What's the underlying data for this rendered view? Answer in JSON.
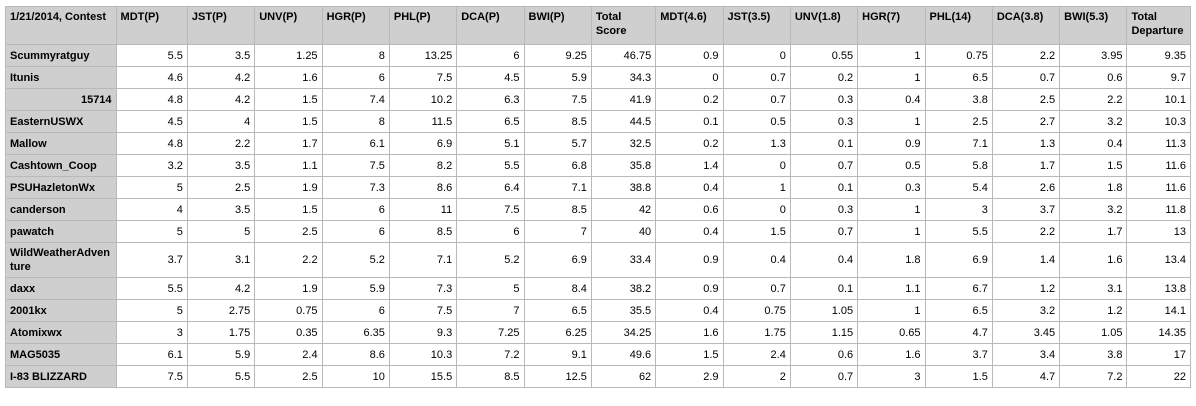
{
  "columns": [
    "1/21/2014, Contest",
    "MDT(P)",
    "JST(P)",
    "UNV(P)",
    "HGR(P)",
    "PHL(P)",
    "DCA(P)",
    "BWI(P)",
    "Total Score",
    "MDT(4.6)",
    "JST(3.5)",
    "UNV(1.8)",
    "HGR(7)",
    "PHL(14)",
    "DCA(3.8)",
    "BWI(5.3)",
    "Total Departure"
  ],
  "rows": [
    [
      "Scummyratguy",
      "5.5",
      "3.5",
      "1.25",
      "8",
      "13.25",
      "6",
      "9.25",
      "46.75",
      "0.9",
      "0",
      "0.55",
      "1",
      "0.75",
      "2.2",
      "3.95",
      "9.35"
    ],
    [
      "Itunis",
      "4.6",
      "4.2",
      "1.6",
      "6",
      "7.5",
      "4.5",
      "5.9",
      "34.3",
      "0",
      "0.7",
      "0.2",
      "1",
      "6.5",
      "0.7",
      "0.6",
      "9.7"
    ],
    [
      "15714",
      "4.8",
      "4.2",
      "1.5",
      "7.4",
      "10.2",
      "6.3",
      "7.5",
      "41.9",
      "0.2",
      "0.7",
      "0.3",
      "0.4",
      "3.8",
      "2.5",
      "2.2",
      "10.1"
    ],
    [
      "EasternUSWX",
      "4.5",
      "4",
      "1.5",
      "8",
      "11.5",
      "6.5",
      "8.5",
      "44.5",
      "0.1",
      "0.5",
      "0.3",
      "1",
      "2.5",
      "2.7",
      "3.2",
      "10.3"
    ],
    [
      "Mallow",
      "4.8",
      "2.2",
      "1.7",
      "6.1",
      "6.9",
      "5.1",
      "5.7",
      "32.5",
      "0.2",
      "1.3",
      "0.1",
      "0.9",
      "7.1",
      "1.3",
      "0.4",
      "11.3"
    ],
    [
      "Cashtown_Coop",
      "3.2",
      "3.5",
      "1.1",
      "7.5",
      "8.2",
      "5.5",
      "6.8",
      "35.8",
      "1.4",
      "0",
      "0.7",
      "0.5",
      "5.8",
      "1.7",
      "1.5",
      "11.6"
    ],
    [
      "PSUHazletonWx",
      "5",
      "2.5",
      "1.9",
      "7.3",
      "8.6",
      "6.4",
      "7.1",
      "38.8",
      "0.4",
      "1",
      "0.1",
      "0.3",
      "5.4",
      "2.6",
      "1.8",
      "11.6"
    ],
    [
      "canderson",
      "4",
      "3.5",
      "1.5",
      "6",
      "11",
      "7.5",
      "8.5",
      "42",
      "0.6",
      "0",
      "0.3",
      "1",
      "3",
      "3.7",
      "3.2",
      "11.8"
    ],
    [
      "pawatch",
      "5",
      "5",
      "2.5",
      "6",
      "8.5",
      "6",
      "7",
      "40",
      "0.4",
      "1.5",
      "0.7",
      "1",
      "5.5",
      "2.2",
      "1.7",
      "13"
    ],
    [
      "WildWeatherAdventure",
      "3.7",
      "3.1",
      "2.2",
      "5.2",
      "7.1",
      "5.2",
      "6.9",
      "33.4",
      "0.9",
      "0.4",
      "0.4",
      "1.8",
      "6.9",
      "1.4",
      "1.6",
      "13.4"
    ],
    [
      "daxx",
      "5.5",
      "4.2",
      "1.9",
      "5.9",
      "7.3",
      "5",
      "8.4",
      "38.2",
      "0.9",
      "0.7",
      "0.1",
      "1.1",
      "6.7",
      "1.2",
      "3.1",
      "13.8"
    ],
    [
      "2001kx",
      "5",
      "2.75",
      "0.75",
      "6",
      "7.5",
      "7",
      "6.5",
      "35.5",
      "0.4",
      "0.75",
      "1.05",
      "1",
      "6.5",
      "3.2",
      "1.2",
      "14.1"
    ],
    [
      "Atomixwx",
      "3",
      "1.75",
      "0.35",
      "6.35",
      "9.3",
      "7.25",
      "6.25",
      "34.25",
      "1.6",
      "1.75",
      "1.15",
      "0.65",
      "4.7",
      "3.45",
      "1.05",
      "14.35"
    ],
    [
      "MAG5035",
      "6.1",
      "5.9",
      "2.4",
      "8.6",
      "10.3",
      "7.2",
      "9.1",
      "49.6",
      "1.5",
      "2.4",
      "0.6",
      "1.6",
      "3.7",
      "3.4",
      "3.8",
      "17"
    ],
    [
      "I-83 BLIZZARD",
      "7.5",
      "5.5",
      "2.5",
      "10",
      "15.5",
      "8.5",
      "12.5",
      "62",
      "2.9",
      "2",
      "0.7",
      "3",
      "1.5",
      "4.7",
      "7.2",
      "22"
    ]
  ]
}
